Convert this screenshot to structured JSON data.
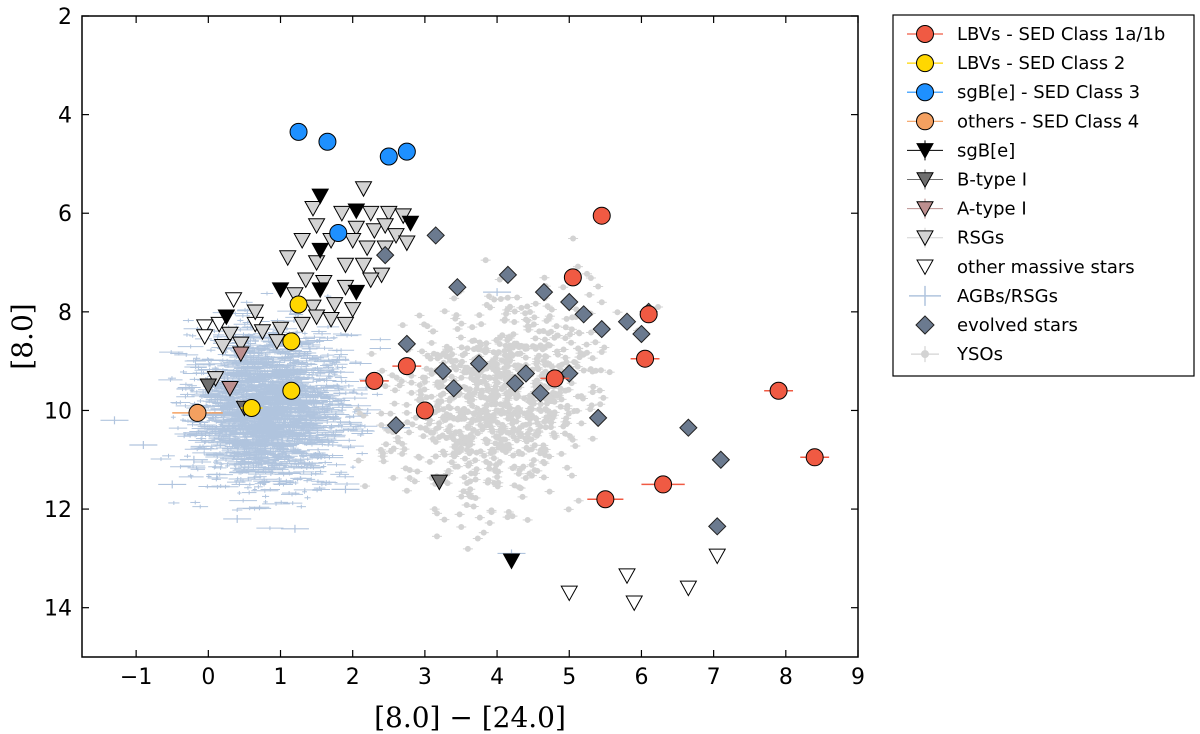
{
  "chart_data": {
    "type": "scatter",
    "xlabel": "[8.0] − [24.0]",
    "ylabel": "[8.0]",
    "xlim": [
      -1.75,
      9
    ],
    "ylim": [
      15,
      2
    ],
    "y_inverted": true,
    "xticks": [
      "−1",
      "0",
      "1",
      "2",
      "3",
      "4",
      "5",
      "6",
      "7",
      "8",
      "9"
    ],
    "xtick_values": [
      -1,
      0,
      1,
      2,
      3,
      4,
      5,
      6,
      7,
      8,
      9
    ],
    "yticks": [
      "2",
      "4",
      "6",
      "8",
      "10",
      "12",
      "14"
    ],
    "ytick_values": [
      2,
      4,
      6,
      8,
      10,
      12,
      14
    ],
    "legend_position": "outside-right",
    "background_clouds": [
      {
        "name": "AGBs/RSGs",
        "color": "#b0c4de",
        "description_center": [
          0.9,
          9.9
        ],
        "x_range": [
          -1.5,
          3.3
        ],
        "y_range": [
          5.2,
          12.7
        ]
      },
      {
        "name": "YSOs",
        "color": "#d3d3d3",
        "x_range": [
          1.8,
          7.0
        ],
        "y_range": [
          4.9,
          13.8
        ]
      }
    ],
    "series": [
      {
        "name": "LBVs - SED Class 1a/1b",
        "marker": "circle",
        "color": "#f05a43",
        "errcolor": "#f05a43",
        "points": [
          [
            5.45,
            6.05
          ],
          [
            5.05,
            7.3
          ],
          [
            6.1,
            8.05
          ],
          [
            6.05,
            8.95
          ],
          [
            2.75,
            9.1
          ],
          [
            2.3,
            9.4
          ],
          [
            4.8,
            9.35
          ],
          [
            3.0,
            10.0
          ],
          [
            7.9,
            9.6
          ],
          [
            8.4,
            10.95
          ],
          [
            6.3,
            11.5
          ],
          [
            5.5,
            11.8
          ]
        ],
        "xerr": [
          0.1,
          0.1,
          0.1,
          0.2,
          0.2,
          0.2,
          0.2,
          0.1,
          0.2,
          0.2,
          0.3,
          0.25
        ]
      },
      {
        "name": "LBVs - SED Class 2",
        "marker": "circle",
        "color": "#ffd700",
        "points": [
          [
            1.25,
            7.85
          ],
          [
            1.15,
            8.6
          ],
          [
            1.15,
            9.6
          ],
          [
            0.6,
            9.95
          ]
        ],
        "xerr": [
          0.1,
          0.1,
          0.1,
          0.15
        ]
      },
      {
        "name": "sgB[e] - SED Class 3",
        "marker": "circle",
        "color": "#1e90ff",
        "points": [
          [
            1.25,
            4.35
          ],
          [
            1.65,
            4.55
          ],
          [
            2.5,
            4.85
          ],
          [
            2.75,
            4.75
          ],
          [
            1.8,
            6.4
          ]
        ],
        "xerr": [
          0.05,
          0.05,
          0.1,
          0.1,
          0.05
        ]
      },
      {
        "name": "others - SED Class 4",
        "marker": "circle",
        "color": "#f4a060",
        "points": [
          [
            -0.15,
            10.05
          ]
        ],
        "xerr": [
          0.35
        ]
      },
      {
        "name": "sgB[e]",
        "marker": "triangle-down",
        "color": "#000000",
        "points": [
          [
            1.55,
            5.65
          ],
          [
            2.05,
            5.95
          ],
          [
            2.8,
            6.2
          ],
          [
            1.55,
            6.75
          ],
          [
            1.0,
            7.55
          ],
          [
            1.55,
            7.55
          ],
          [
            2.05,
            7.6
          ],
          [
            0.25,
            8.1
          ],
          [
            4.2,
            13.05
          ]
        ]
      },
      {
        "name": "B-type I",
        "marker": "triangle-down",
        "color": "#6e6e6e",
        "points": [
          [
            0.0,
            9.5
          ],
          [
            0.5,
            9.95
          ],
          [
            3.2,
            11.45
          ]
        ]
      },
      {
        "name": "A-type I",
        "marker": "triangle-down",
        "color": "#bc8f8f",
        "points": [
          [
            0.45,
            8.85
          ],
          [
            0.3,
            9.55
          ]
        ]
      },
      {
        "name": "RSGs",
        "marker": "triangle-down",
        "color": "#d3d3d3",
        "points": [
          [
            2.15,
            5.5
          ],
          [
            1.45,
            5.9
          ],
          [
            1.85,
            6.0
          ],
          [
            2.25,
            6.0
          ],
          [
            2.5,
            6.0
          ],
          [
            2.7,
            6.05
          ],
          [
            1.5,
            6.25
          ],
          [
            2.05,
            6.3
          ],
          [
            2.3,
            6.35
          ],
          [
            2.45,
            6.25
          ],
          [
            2.6,
            6.45
          ],
          [
            1.3,
            6.55
          ],
          [
            1.7,
            6.55
          ],
          [
            2.0,
            6.55
          ],
          [
            2.2,
            6.7
          ],
          [
            2.45,
            6.7
          ],
          [
            2.75,
            6.6
          ],
          [
            1.1,
            6.9
          ],
          [
            1.5,
            7.0
          ],
          [
            1.9,
            7.05
          ],
          [
            2.15,
            7.05
          ],
          [
            2.4,
            7.25
          ],
          [
            1.35,
            7.35
          ],
          [
            1.6,
            7.4
          ],
          [
            1.9,
            7.5
          ],
          [
            2.25,
            7.35
          ],
          [
            1.2,
            7.65
          ],
          [
            1.45,
            7.9
          ],
          [
            1.75,
            7.85
          ],
          [
            2.0,
            7.95
          ],
          [
            1.5,
            8.1
          ],
          [
            1.7,
            8.15
          ],
          [
            1.9,
            8.25
          ],
          [
            1.0,
            8.35
          ],
          [
            1.3,
            8.25
          ],
          [
            0.95,
            8.6
          ],
          [
            0.75,
            8.4
          ],
          [
            0.65,
            8.0
          ],
          [
            0.3,
            8.45
          ],
          [
            0.2,
            8.7
          ],
          [
            0.45,
            8.65
          ],
          [
            0.1,
            9.35
          ]
        ]
      },
      {
        "name": "other massive stars",
        "marker": "triangle-down",
        "color": "#ffffff",
        "points": [
          [
            0.35,
            7.75
          ],
          [
            0.15,
            8.25
          ],
          [
            -0.05,
            8.3
          ],
          [
            -0.05,
            8.5
          ],
          [
            0.65,
            8.25
          ],
          [
            7.05,
            12.95
          ],
          [
            5.8,
            13.35
          ],
          [
            6.65,
            13.6
          ],
          [
            5.0,
            13.7
          ],
          [
            5.9,
            13.9
          ]
        ]
      },
      {
        "name": "evolved stars",
        "marker": "diamond",
        "color": "#6b7a8f",
        "points": [
          [
            3.15,
            6.45
          ],
          [
            2.45,
            6.85
          ],
          [
            4.15,
            7.25
          ],
          [
            3.45,
            7.5
          ],
          [
            4.65,
            7.6
          ],
          [
            5.0,
            7.8
          ],
          [
            5.2,
            8.05
          ],
          [
            6.1,
            8.0
          ],
          [
            5.8,
            8.2
          ],
          [
            5.45,
            8.35
          ],
          [
            6.0,
            8.45
          ],
          [
            2.75,
            8.65
          ],
          [
            3.75,
            9.05
          ],
          [
            3.25,
            9.2
          ],
          [
            4.4,
            9.25
          ],
          [
            5.0,
            9.25
          ],
          [
            3.4,
            9.55
          ],
          [
            4.25,
            9.45
          ],
          [
            4.6,
            9.65
          ],
          [
            5.4,
            10.15
          ],
          [
            2.6,
            10.3
          ],
          [
            6.65,
            10.35
          ],
          [
            7.1,
            11.0
          ],
          [
            7.05,
            12.35
          ]
        ]
      }
    ],
    "legend": [
      {
        "label": "LBVs - SED Class 1a/1b",
        "marker": "circle",
        "color": "#f05a43"
      },
      {
        "label": "LBVs - SED Class 2",
        "marker": "circle",
        "color": "#ffd700"
      },
      {
        "label": "sgB[e] - SED Class 3",
        "marker": "circle",
        "color": "#1e90ff"
      },
      {
        "label": "others - SED Class 4",
        "marker": "circle",
        "color": "#f4a060"
      },
      {
        "label": "sgB[e]",
        "marker": "triangle-down",
        "color": "#000000"
      },
      {
        "label": "B-type I",
        "marker": "triangle-down",
        "color": "#6e6e6e"
      },
      {
        "label": "A-type I",
        "marker": "triangle-down",
        "color": "#bc8f8f"
      },
      {
        "label": "RSGs",
        "marker": "triangle-down",
        "color": "#d3d3d3"
      },
      {
        "label": "other massive stars",
        "marker": "triangle-down",
        "color": "#ffffff"
      },
      {
        "label": "AGBs/RSGs",
        "marker": "errorbar-cross",
        "color": "#b0c4de"
      },
      {
        "label": "evolved stars",
        "marker": "diamond",
        "color": "#6b7a8f"
      },
      {
        "label": "YSOs",
        "marker": "small-dot",
        "color": "#d3d3d3"
      }
    ]
  }
}
